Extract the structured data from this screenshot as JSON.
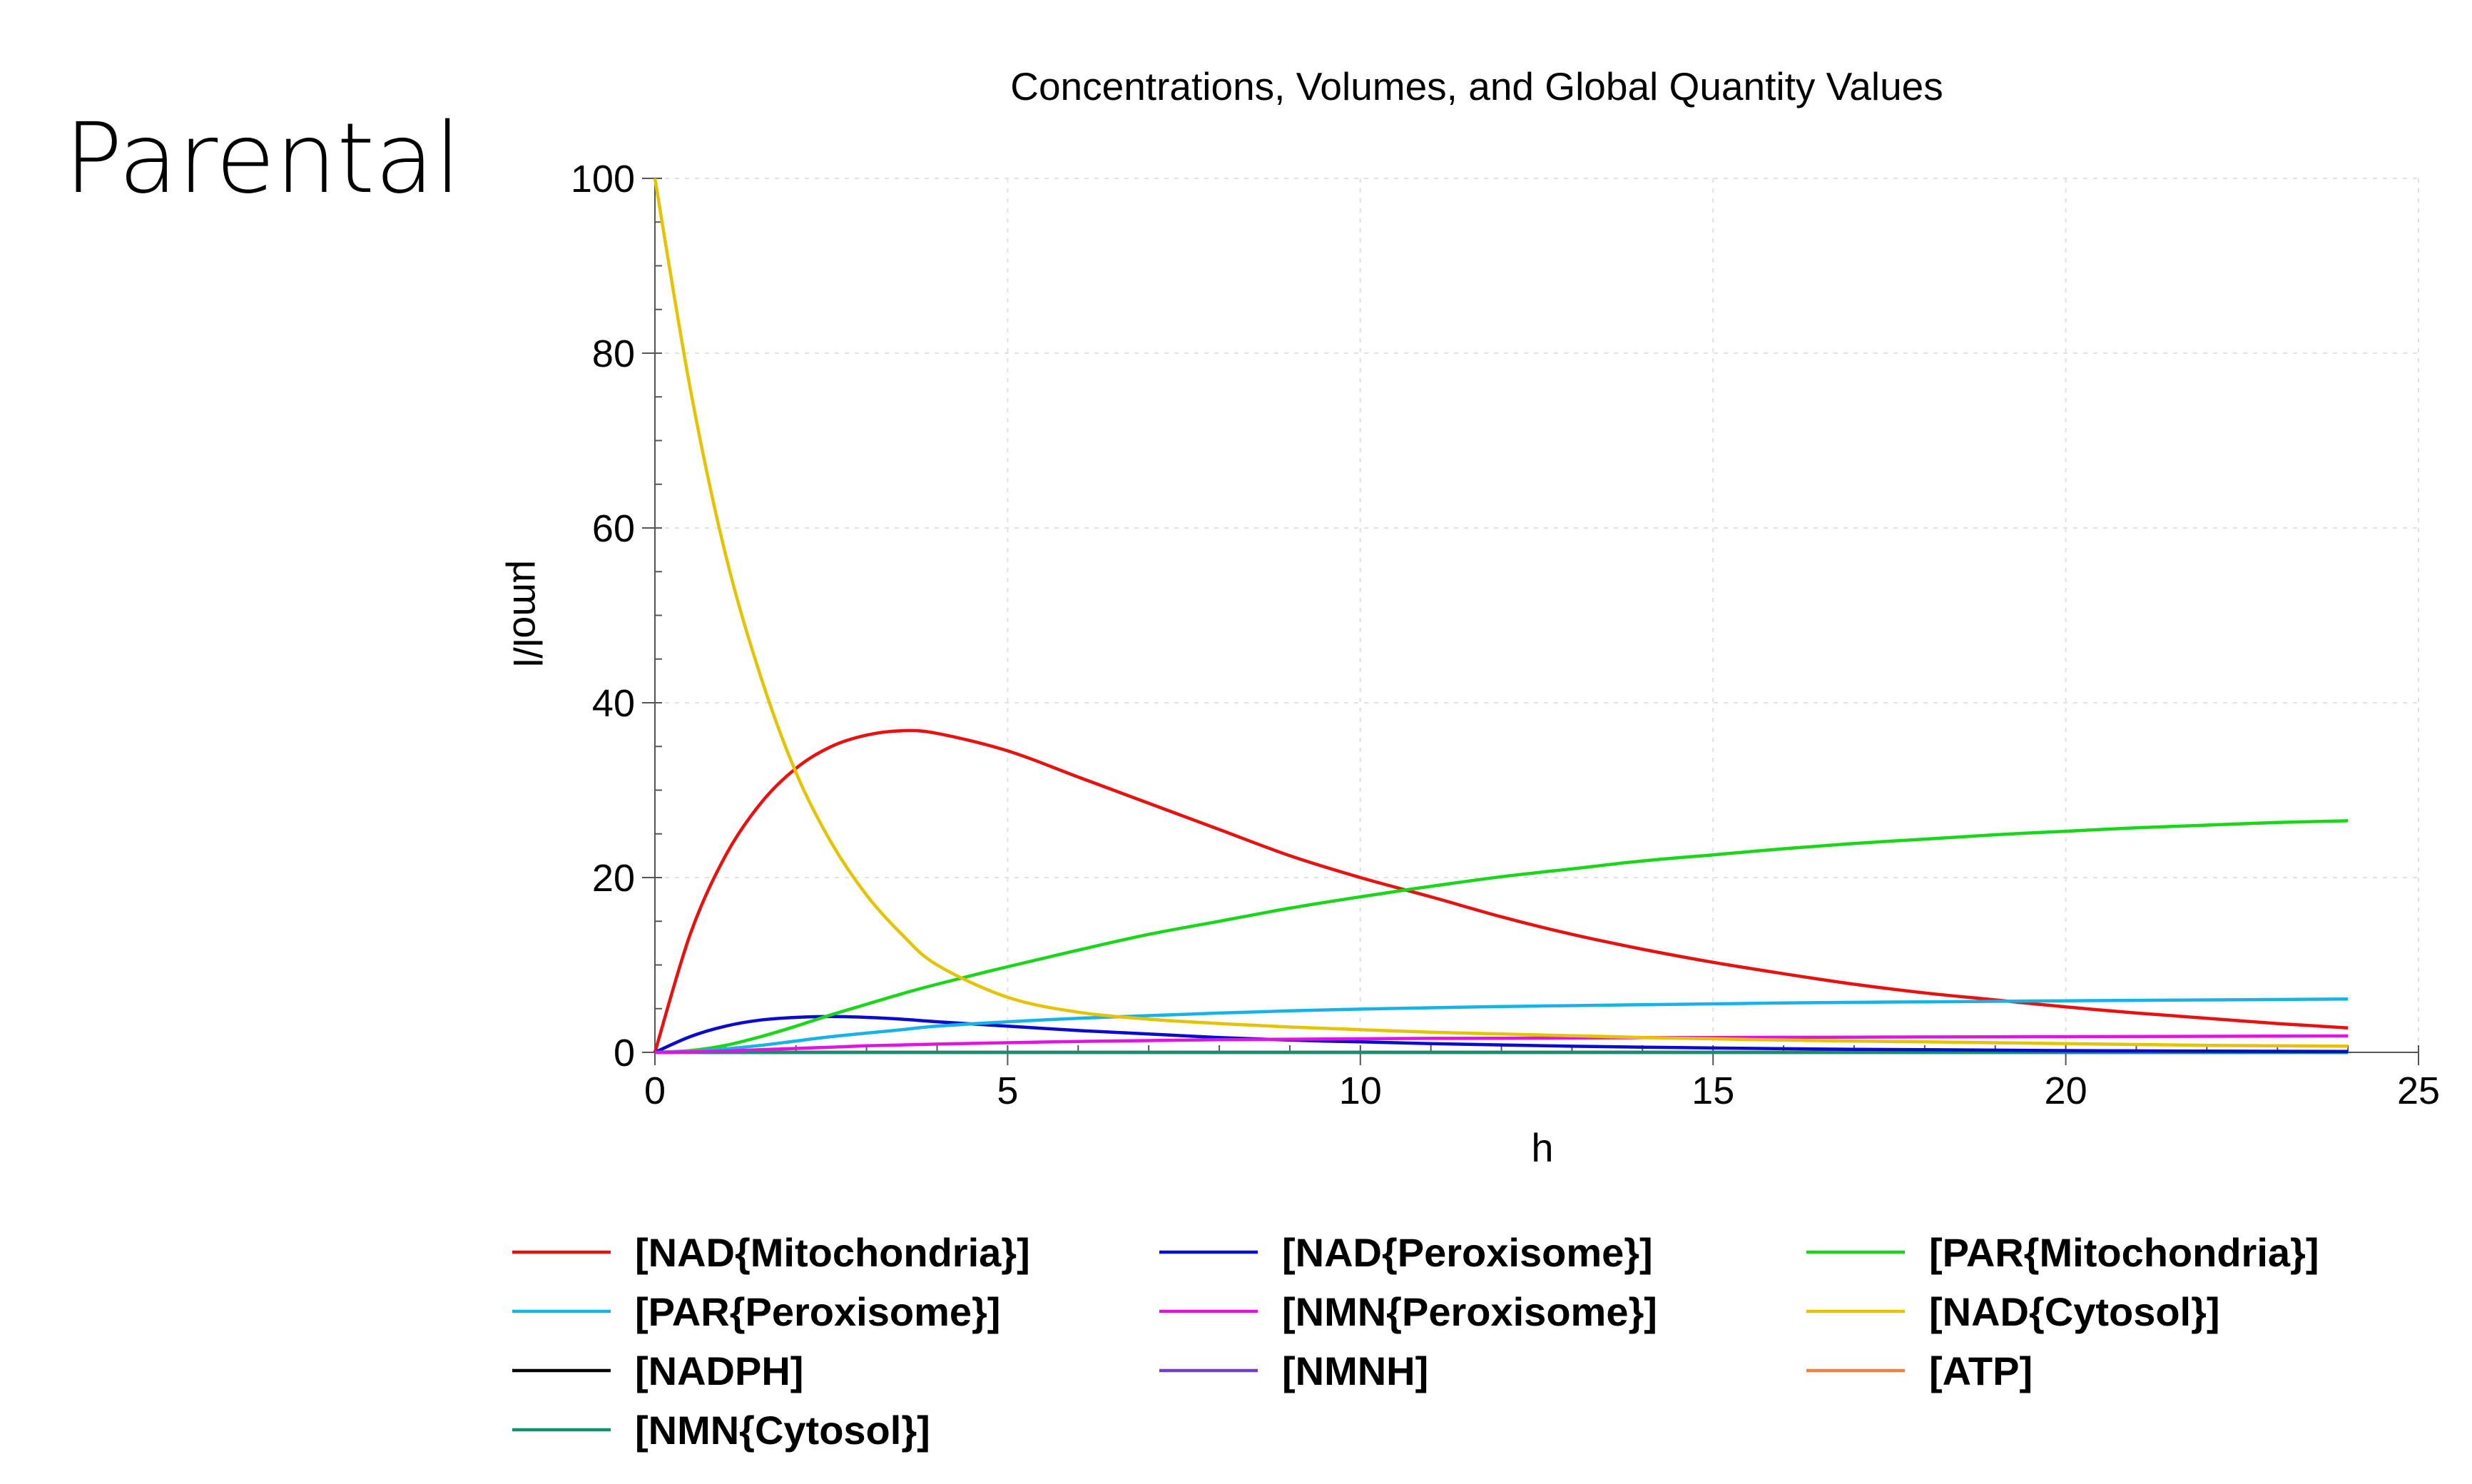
{
  "slide": {
    "heading": "Parental"
  },
  "chart_data": {
    "type": "line",
    "title": "Concentrations, Volumes, and Global Quantity Values",
    "xlabel": "h",
    "ylabel": "µmol/l",
    "xlim": [
      0,
      25
    ],
    "ylim": [
      0,
      100
    ],
    "x_ticks": [
      "0",
      "5",
      "10",
      "15",
      "20",
      "25"
    ],
    "y_ticks": [
      "0",
      "20",
      "40",
      "60",
      "80",
      "100"
    ],
    "grid": true,
    "legend_position": "bottom",
    "x": [
      0,
      0.5,
      1,
      1.5,
      2,
      2.5,
      3,
      3.5,
      4,
      5,
      6,
      7,
      8,
      9,
      10,
      11,
      12,
      13,
      14,
      15,
      16,
      17,
      18,
      19,
      20,
      21,
      22,
      23,
      24
    ],
    "series": [
      {
        "name": "[NAD{Mitochondria}]",
        "color": "#e8110f",
        "values": [
          0,
          13.5,
          22.5,
          28.5,
          32.5,
          35,
          36.3,
          36.8,
          36.5,
          34.5,
          31.5,
          28.5,
          25.5,
          22.5,
          20,
          17.8,
          15.5,
          13.5,
          11.8,
          10.3,
          9,
          7.8,
          6.8,
          6,
          5.2,
          4.5,
          3.9,
          3.3,
          2.8
        ]
      },
      {
        "name": "[NAD{Peroxisome}]",
        "color": "#0a0ad0",
        "values": [
          0,
          1.8,
          3,
          3.7,
          4,
          4.1,
          4,
          3.8,
          3.5,
          3,
          2.5,
          2.1,
          1.7,
          1.4,
          1.2,
          1,
          0.85,
          0.7,
          0.6,
          0.5,
          0.42,
          0.35,
          0.3,
          0.25,
          0.2,
          0.17,
          0.14,
          0.12,
          0.1
        ]
      },
      {
        "name": "[PAR{Mitochondria}]",
        "color": "#19d619",
        "values": [
          0,
          0.2,
          0.8,
          1.8,
          3,
          4.3,
          5.5,
          6.7,
          7.8,
          9.8,
          11.7,
          13.5,
          15,
          16.5,
          17.8,
          19,
          20.1,
          21,
          21.9,
          22.6,
          23.3,
          23.9,
          24.4,
          24.9,
          25.3,
          25.7,
          26,
          26.3,
          26.5
        ]
      },
      {
        "name": "[PAR{Peroxisome}]",
        "color": "#16b4e6",
        "values": [
          0,
          0.1,
          0.4,
          0.8,
          1.3,
          1.8,
          2.2,
          2.6,
          3,
          3.5,
          3.9,
          4.2,
          4.5,
          4.75,
          4.95,
          5.1,
          5.25,
          5.35,
          5.45,
          5.55,
          5.65,
          5.72,
          5.78,
          5.84,
          5.9,
          5.95,
          6,
          6.05,
          6.1
        ]
      },
      {
        "name": "[NMN{Peroxisome}]",
        "color": "#e014e0",
        "values": [
          0,
          0.05,
          0.15,
          0.3,
          0.45,
          0.6,
          0.75,
          0.85,
          0.95,
          1.1,
          1.25,
          1.35,
          1.45,
          1.5,
          1.55,
          1.6,
          1.62,
          1.65,
          1.68,
          1.7,
          1.72,
          1.74,
          1.76,
          1.78,
          1.8,
          1.82,
          1.84,
          1.86,
          1.88
        ]
      },
      {
        "name": "[NAD{Cytosol}]",
        "color": "#e6c300",
        "values": [
          100,
          76,
          57,
          43,
          32,
          24,
          18,
          13.5,
          10,
          6.3,
          4.6,
          3.8,
          3.3,
          2.9,
          2.6,
          2.3,
          2.1,
          1.9,
          1.7,
          1.55,
          1.4,
          1.3,
          1.2,
          1.1,
          1,
          0.9,
          0.8,
          0.75,
          0.7
        ]
      },
      {
        "name": "[NADPH]",
        "color": "#000000",
        "values": [
          0,
          0,
          0,
          0,
          0,
          0,
          0,
          0,
          0,
          0,
          0,
          0,
          0,
          0,
          0,
          0,
          0,
          0,
          0,
          0,
          0,
          0,
          0,
          0,
          0,
          0,
          0,
          0,
          0
        ]
      },
      {
        "name": "[NMNH]",
        "color": "#7040c0",
        "values": [
          0,
          0,
          0,
          0,
          0,
          0,
          0,
          0,
          0,
          0,
          0,
          0,
          0,
          0,
          0,
          0,
          0,
          0,
          0,
          0,
          0,
          0,
          0,
          0,
          0,
          0,
          0,
          0,
          0
        ]
      },
      {
        "name": "[ATP]",
        "color": "#f08040",
        "values": [
          0,
          0,
          0,
          0,
          0,
          0,
          0,
          0,
          0,
          0,
          0,
          0,
          0,
          0,
          0,
          0,
          0,
          0,
          0,
          0,
          0,
          0,
          0,
          0,
          0,
          0,
          0,
          0,
          0
        ]
      },
      {
        "name": "[NMN{Cytosol}]",
        "color": "#129070",
        "values": [
          0,
          0,
          0,
          0,
          0,
          0,
          0,
          0,
          0,
          0,
          0,
          0,
          0,
          0,
          0,
          0,
          0,
          0,
          0,
          0,
          0,
          0,
          0,
          0,
          0,
          0,
          0,
          0,
          0
        ]
      }
    ]
  }
}
